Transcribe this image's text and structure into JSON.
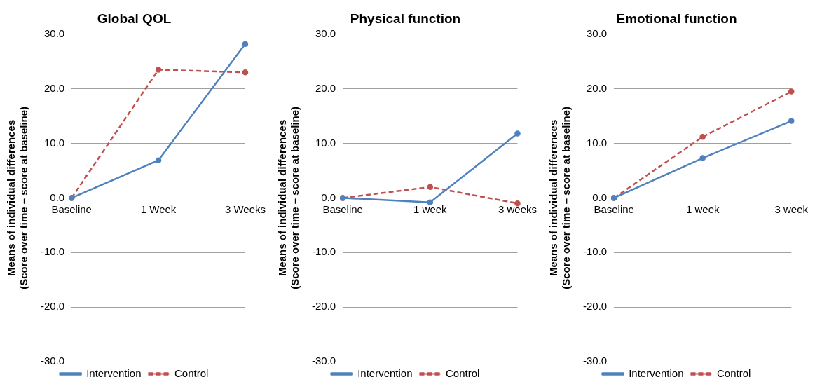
{
  "chart_data": [
    {
      "type": "line",
      "title": "Global QOL",
      "ylabel": "Means of individual differences\n(Score over time – score at baseline)",
      "categories": [
        "Baseline",
        "1 Week",
        "3 Weeks"
      ],
      "series": [
        {
          "name": "Intervention",
          "color": "#4f81bd",
          "values": [
            0,
            6.9,
            28.2
          ],
          "line_style": "solid"
        },
        {
          "name": "Control",
          "color": "#c0504d",
          "values": [
            0,
            23.5,
            23.0
          ],
          "line_style": "dashed"
        }
      ],
      "ylim": [
        -30,
        30
      ],
      "yticks": [
        {
          "value": -30,
          "label": "-30.0"
        },
        {
          "value": -20,
          "label": "-20.0"
        },
        {
          "value": -10,
          "label": "-10.0"
        },
        {
          "value": 0,
          "label": "0.0"
        },
        {
          "value": 10,
          "label": "10.0"
        },
        {
          "value": 20,
          "label": "20.0"
        },
        {
          "value": 30,
          "label": "30.0"
        }
      ],
      "grid": "y",
      "legend": "bottom",
      "marker": "circle"
    },
    {
      "type": "line",
      "title": "Physical function",
      "ylabel": "Means of individual differences\n(Score over time – score at baseline)",
      "categories": [
        "Baseline",
        "1 week",
        "3 weeks"
      ],
      "series": [
        {
          "name": "Intervention",
          "color": "#4f81bd",
          "values": [
            0,
            -0.8,
            11.8
          ],
          "line_style": "solid"
        },
        {
          "name": "Control",
          "color": "#c0504d",
          "values": [
            0,
            2.0,
            -1.0
          ],
          "line_style": "dashed"
        }
      ],
      "ylim": [
        -30,
        30
      ],
      "yticks": [
        {
          "value": -30,
          "label": "-30.0"
        },
        {
          "value": -20,
          "label": "-20.0"
        },
        {
          "value": -10,
          "label": "-10.0"
        },
        {
          "value": 0,
          "label": "0.0"
        },
        {
          "value": 10,
          "label": "10.0"
        },
        {
          "value": 20,
          "label": "20.0"
        },
        {
          "value": 30,
          "label": "30.0"
        }
      ],
      "grid": "y",
      "legend": "bottom",
      "marker": "circle"
    },
    {
      "type": "line",
      "title": "Emotional function",
      "ylabel": "Means of individual differences\n(Score over time – score at baseline)",
      "categories": [
        "Baseline",
        "1 week",
        "3 week"
      ],
      "series": [
        {
          "name": "Intervention",
          "color": "#4f81bd",
          "values": [
            0,
            7.3,
            14.1
          ],
          "line_style": "solid"
        },
        {
          "name": "Control",
          "color": "#c0504d",
          "values": [
            0,
            11.2,
            19.5
          ],
          "line_style": "dashed"
        }
      ],
      "ylim": [
        -30,
        30
      ],
      "yticks": [
        {
          "value": -30,
          "label": "-30.0"
        },
        {
          "value": -20,
          "label": "-20.0"
        },
        {
          "value": -10,
          "label": "-10.0"
        },
        {
          "value": 0,
          "label": "0.0"
        },
        {
          "value": 10,
          "label": "10.0"
        },
        {
          "value": 20,
          "label": "20.0"
        },
        {
          "value": 30,
          "label": "30.0"
        }
      ],
      "grid": "y",
      "legend": "bottom",
      "marker": "circle"
    }
  ]
}
